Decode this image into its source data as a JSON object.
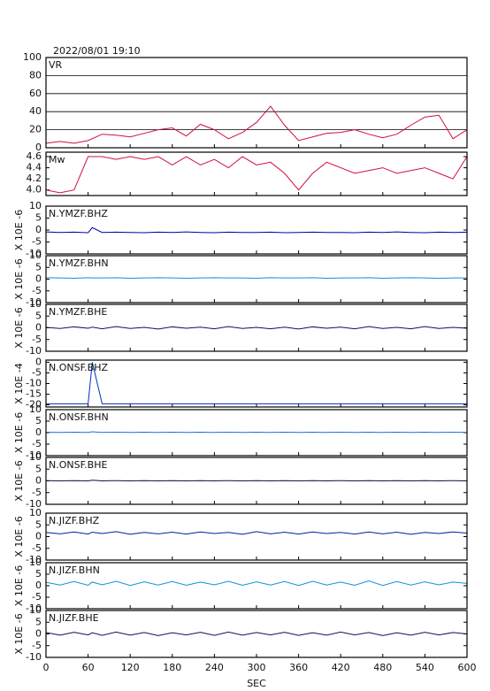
{
  "chart_data": [
    {
      "type": "line",
      "title": "2022/08/01 19:10",
      "name": "VR",
      "color": "#d0103c",
      "grid": true,
      "xlim": [
        0,
        600
      ],
      "xticks": [
        0,
        60,
        120,
        180,
        240,
        300,
        360,
        420,
        480,
        540,
        600
      ],
      "ylim": [
        0,
        100
      ],
      "yticks": [
        0,
        20,
        40,
        60,
        80,
        100
      ],
      "x": [
        0,
        20,
        40,
        60,
        80,
        100,
        120,
        140,
        160,
        180,
        200,
        220,
        240,
        260,
        280,
        300,
        320,
        340,
        360,
        380,
        400,
        420,
        440,
        460,
        480,
        500,
        520,
        540,
        560,
        580,
        600
      ],
      "values": [
        5,
        7,
        5,
        8,
        15,
        14,
        12,
        16,
        20,
        22,
        13,
        26,
        20,
        10,
        17,
        28,
        46,
        25,
        8,
        12,
        16,
        17,
        20,
        15,
        11,
        15,
        25,
        34,
        36,
        10,
        20
      ]
    },
    {
      "type": "line",
      "name": "Mw",
      "color": "#d0103c",
      "grid": false,
      "xlim": [
        0,
        600
      ],
      "xticks": [
        0,
        60,
        120,
        180,
        240,
        300,
        360,
        420,
        480,
        540,
        600
      ],
      "ylim": [
        3.9,
        4.68
      ],
      "yticks": [
        {
          "value": 4,
          "label": "4.0"
        },
        4.2,
        4.4,
        4.6
      ],
      "x": [
        0,
        20,
        40,
        60,
        80,
        100,
        120,
        140,
        160,
        180,
        200,
        220,
        240,
        260,
        280,
        300,
        320,
        340,
        360,
        380,
        400,
        420,
        440,
        460,
        480,
        500,
        520,
        540,
        560,
        580,
        600
      ],
      "values": [
        4.0,
        3.95,
        4.0,
        4.6,
        4.6,
        4.55,
        4.6,
        4.55,
        4.6,
        4.45,
        4.6,
        4.45,
        4.55,
        4.4,
        4.6,
        4.45,
        4.5,
        4.3,
        4.0,
        4.3,
        4.5,
        4.4,
        4.3,
        4.35,
        4.4,
        4.3,
        4.35,
        4.4,
        4.3,
        4.2,
        4.6
      ]
    },
    {
      "type": "line",
      "name": "N.YMZF.BHZ",
      "ylabel": "X 10E -6",
      "color": "#0000a8",
      "xlim": [
        0,
        600
      ],
      "xticks": [
        0,
        60,
        120,
        180,
        240,
        300,
        360,
        420,
        480,
        540,
        600
      ],
      "ylim": [
        -10,
        10
      ],
      "yticks": [
        -10,
        -5,
        0,
        5,
        10
      ],
      "x": [
        0,
        20,
        40,
        60,
        66,
        80,
        100,
        120,
        140,
        160,
        180,
        200,
        220,
        240,
        260,
        280,
        300,
        320,
        340,
        360,
        380,
        400,
        420,
        440,
        460,
        480,
        500,
        520,
        540,
        560,
        580,
        600
      ],
      "values": [
        -0.8,
        -1,
        -0.9,
        -1.1,
        1,
        -1,
        -0.9,
        -1,
        -1.1,
        -0.9,
        -1,
        -0.8,
        -1,
        -1.1,
        -0.9,
        -1,
        -1,
        -0.9,
        -1.1,
        -1,
        -0.9,
        -1,
        -1,
        -1.1,
        -0.9,
        -1,
        -0.8,
        -1,
        -1.1,
        -0.9,
        -1,
        -0.9
      ]
    },
    {
      "type": "line",
      "name": "N.YMZF.BHN",
      "ylabel": "X 10E -6",
      "color": "#1a8ae0",
      "xlim": [
        0,
        600
      ],
      "xticks": [
        0,
        60,
        120,
        180,
        240,
        300,
        360,
        420,
        480,
        540,
        600
      ],
      "ylim": [
        -10,
        10
      ],
      "yticks": [
        -10,
        -5,
        0,
        5,
        10
      ],
      "x": [
        0,
        20,
        40,
        60,
        66,
        80,
        100,
        120,
        140,
        160,
        180,
        200,
        220,
        240,
        260,
        280,
        300,
        320,
        340,
        360,
        380,
        400,
        420,
        440,
        460,
        480,
        500,
        520,
        540,
        560,
        580,
        600
      ],
      "values": [
        0.6,
        0.5,
        0.4,
        0.6,
        0.5,
        0.5,
        0.6,
        0.4,
        0.5,
        0.6,
        0.5,
        0.4,
        0.5,
        0.6,
        0.5,
        0.5,
        0.4,
        0.6,
        0.5,
        0.5,
        0.6,
        0.4,
        0.5,
        0.5,
        0.6,
        0.4,
        0.5,
        0.6,
        0.5,
        0.4,
        0.5,
        0.5
      ]
    },
    {
      "type": "line",
      "name": "N.YMZF.BHE",
      "ylabel": "X 10E -6",
      "color": "#101060",
      "xlim": [
        0,
        600
      ],
      "xticks": [
        0,
        60,
        120,
        180,
        240,
        300,
        360,
        420,
        480,
        540,
        600
      ],
      "ylim": [
        -10,
        10
      ],
      "yticks": [
        -10,
        -5,
        0,
        5,
        10
      ],
      "x": [
        0,
        20,
        40,
        60,
        66,
        80,
        100,
        120,
        140,
        160,
        180,
        200,
        220,
        240,
        260,
        280,
        300,
        320,
        340,
        360,
        380,
        400,
        420,
        440,
        460,
        480,
        500,
        520,
        540,
        560,
        580,
        600
      ],
      "values": [
        0.2,
        -0.3,
        0.4,
        -0.2,
        0.3,
        -0.4,
        0.5,
        -0.3,
        0.2,
        -0.5,
        0.4,
        -0.2,
        0.3,
        -0.4,
        0.5,
        -0.3,
        0.2,
        -0.4,
        0.3,
        -0.5,
        0.4,
        -0.2,
        0.3,
        -0.4,
        0.5,
        -0.3,
        0.2,
        -0.4,
        0.5,
        -0.3,
        0.2,
        -0.2
      ]
    },
    {
      "type": "line",
      "name": "N.ONSF.BHZ",
      "ylabel": "X 10E -4",
      "color": "#0030c0",
      "xlim": [
        0,
        600
      ],
      "xticks": [
        0,
        60,
        120,
        180,
        240,
        300,
        360,
        420,
        480,
        540,
        600
      ],
      "ylim": [
        -21,
        1
      ],
      "yticks": [
        -20,
        -15,
        -10,
        -5,
        0
      ],
      "x": [
        0,
        20,
        40,
        60,
        66,
        80,
        100,
        120,
        140,
        160,
        180,
        200,
        220,
        240,
        260,
        280,
        300,
        320,
        340,
        360,
        380,
        400,
        420,
        440,
        460,
        480,
        500,
        520,
        540,
        560,
        580,
        600
      ],
      "values": [
        -19.5,
        -19.5,
        -19.5,
        -19.5,
        0,
        -19.5,
        -19.5,
        -19.5,
        -19.5,
        -19.5,
        -19.5,
        -19.5,
        -19.5,
        -19.5,
        -19.5,
        -19.5,
        -19.5,
        -19.5,
        -19.5,
        -19.5,
        -19.5,
        -19.5,
        -19.5,
        -19.5,
        -19.5,
        -19.5,
        -19.5,
        -19.5,
        -19.5,
        -19.5,
        -19.5,
        -19.5
      ]
    },
    {
      "type": "line",
      "name": "N.ONSF.BHN",
      "ylabel": "X 10E -6",
      "color": "#2070d0",
      "xlim": [
        0,
        600
      ],
      "xticks": [
        0,
        60,
        120,
        180,
        240,
        300,
        360,
        420,
        480,
        540,
        600
      ],
      "ylim": [
        -10,
        10
      ],
      "yticks": [
        -10,
        -5,
        0,
        5,
        10
      ],
      "x": [
        0,
        20,
        40,
        60,
        66,
        80,
        100,
        120,
        140,
        160,
        180,
        200,
        220,
        240,
        260,
        280,
        300,
        320,
        340,
        360,
        380,
        400,
        420,
        440,
        460,
        480,
        500,
        520,
        540,
        560,
        580,
        600
      ],
      "values": [
        0.2,
        0.1,
        0.2,
        0.1,
        0.4,
        0.1,
        0.2,
        0.1,
        0.2,
        0.1,
        0.2,
        0.1,
        0.2,
        0.1,
        0.2,
        0.1,
        0.2,
        0.1,
        0.2,
        0.1,
        0.2,
        0.1,
        0.2,
        0.1,
        0.2,
        0.1,
        0.2,
        0.1,
        0.2,
        0.1,
        0.2,
        0.1
      ]
    },
    {
      "type": "line",
      "name": "N.ONSF.BHE",
      "ylabel": "X 10E -6",
      "color": "#101040",
      "xlim": [
        0,
        600
      ],
      "xticks": [
        0,
        60,
        120,
        180,
        240,
        300,
        360,
        420,
        480,
        540,
        600
      ],
      "ylim": [
        -10,
        10
      ],
      "yticks": [
        -10,
        -5,
        0,
        5,
        10
      ],
      "x": [
        0,
        20,
        40,
        60,
        66,
        80,
        100,
        120,
        140,
        160,
        180,
        200,
        220,
        240,
        260,
        280,
        300,
        320,
        340,
        360,
        380,
        400,
        420,
        440,
        460,
        480,
        500,
        520,
        540,
        560,
        580,
        600
      ],
      "values": [
        0.1,
        0,
        0.1,
        0,
        0.3,
        0,
        0.1,
        0,
        0.1,
        0,
        0.1,
        0,
        0.1,
        0,
        0.1,
        0,
        0.1,
        0,
        0.1,
        0,
        0.1,
        0,
        0.1,
        0,
        0.1,
        0,
        0.1,
        0,
        0.1,
        0,
        0.1,
        0
      ]
    },
    {
      "type": "line",
      "name": "N.JIZF.BHZ",
      "ylabel": "X 10E -6",
      "color": "#0020a0",
      "xlim": [
        0,
        600
      ],
      "xticks": [
        0,
        60,
        120,
        180,
        240,
        300,
        360,
        420,
        480,
        540,
        600
      ],
      "ylim": [
        -10,
        10
      ],
      "yticks": [
        -10,
        -5,
        0,
        5,
        10
      ],
      "x": [
        0,
        20,
        40,
        60,
        66,
        80,
        100,
        120,
        140,
        160,
        180,
        200,
        220,
        240,
        260,
        280,
        300,
        320,
        340,
        360,
        380,
        400,
        420,
        440,
        460,
        480,
        500,
        520,
        540,
        560,
        580,
        600
      ],
      "values": [
        1.8,
        1.2,
        2,
        1.1,
        1.9,
        1.3,
        2.1,
        1,
        1.8,
        1.2,
        1.9,
        1.1,
        2,
        1.3,
        1.8,
        1,
        2.1,
        1.2,
        1.9,
        1.1,
        2,
        1.3,
        1.8,
        1.1,
        2,
        1.2,
        1.9,
        1,
        1.8,
        1.3,
        2,
        1.5
      ]
    },
    {
      "type": "line",
      "name": "N.JIZF.BHN",
      "ylabel": "X 10E -6",
      "color": "#1090e0",
      "xlim": [
        0,
        600
      ],
      "xticks": [
        0,
        60,
        120,
        180,
        240,
        300,
        360,
        420,
        480,
        540,
        600
      ],
      "ylim": [
        -10,
        10
      ],
      "yticks": [
        -10,
        -5,
        0,
        5,
        10
      ],
      "x": [
        0,
        20,
        40,
        60,
        66,
        80,
        100,
        120,
        140,
        160,
        180,
        200,
        220,
        240,
        260,
        280,
        300,
        320,
        340,
        360,
        380,
        400,
        420,
        440,
        460,
        480,
        500,
        520,
        540,
        560,
        580,
        600
      ],
      "values": [
        1.5,
        0.3,
        1.8,
        0.2,
        1.6,
        0.4,
        1.9,
        0.1,
        1.7,
        0.3,
        1.8,
        0.2,
        1.6,
        0.4,
        1.9,
        0.2,
        1.7,
        0.3,
        1.8,
        0.1,
        1.9,
        0.3,
        1.6,
        0.2,
        2.1,
        0.1,
        1.8,
        0.3,
        1.7,
        0.4,
        1.6,
        1
      ]
    },
    {
      "type": "line",
      "name": "N.JIZF.BHE",
      "ylabel": "X 10E -6",
      "color": "#101060",
      "xlabel": "SEC",
      "xlim": [
        0,
        600
      ],
      "xticks": [
        0,
        60,
        120,
        180,
        240,
        300,
        360,
        420,
        480,
        540,
        600
      ],
      "ylim": [
        -10,
        10
      ],
      "yticks": [
        -10,
        -5,
        0,
        5,
        10
      ],
      "x": [
        0,
        20,
        40,
        60,
        66,
        80,
        100,
        120,
        140,
        160,
        180,
        200,
        220,
        240,
        260,
        280,
        300,
        320,
        340,
        360,
        380,
        400,
        420,
        440,
        460,
        480,
        500,
        520,
        540,
        560,
        580,
        600
      ],
      "values": [
        0.6,
        -0.5,
        0.7,
        -0.4,
        0.5,
        -0.6,
        0.8,
        -0.5,
        0.6,
        -0.7,
        0.5,
        -0.4,
        0.7,
        -0.6,
        0.8,
        -0.5,
        0.6,
        -0.4,
        0.7,
        -0.6,
        0.5,
        -0.5,
        0.8,
        -0.4,
        0.6,
        -0.7,
        0.5,
        -0.5,
        0.7,
        -0.4,
        0.6,
        0
      ]
    }
  ]
}
